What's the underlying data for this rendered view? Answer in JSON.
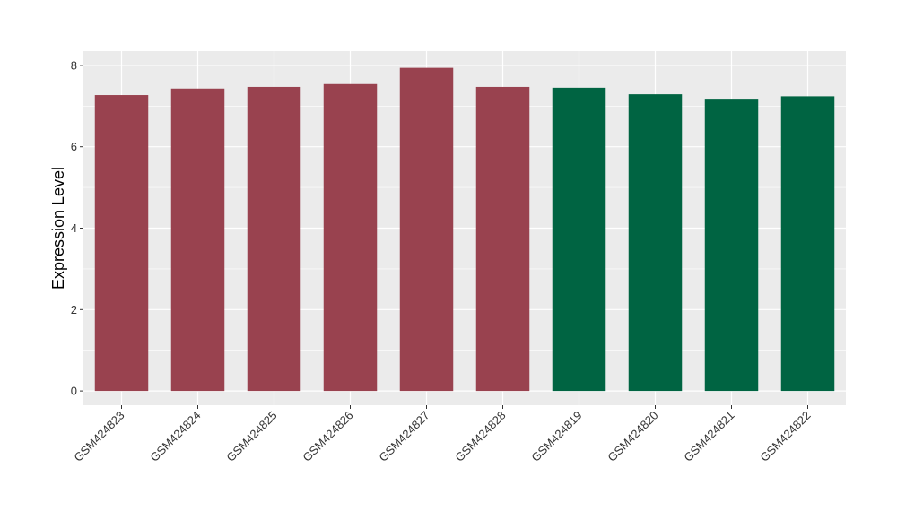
{
  "chart_data": {
    "type": "bar",
    "ylabel": "Expression Level",
    "xlabel": "",
    "ylim": [
      -0.35,
      8.35
    ],
    "yticks": [
      0,
      2,
      4,
      6,
      8
    ],
    "grid": true,
    "categories": [
      "GSM424823",
      "GSM424824",
      "GSM424825",
      "GSM424826",
      "GSM424827",
      "GSM424828",
      "GSM424819",
      "GSM424820",
      "GSM424821",
      "GSM424822"
    ],
    "values": [
      7.27,
      7.43,
      7.47,
      7.54,
      7.94,
      7.47,
      7.45,
      7.29,
      7.18,
      7.24
    ],
    "bar_colors": [
      "#99424f",
      "#99424f",
      "#99424f",
      "#99424f",
      "#99424f",
      "#99424f",
      "#006442",
      "#006442",
      "#006442",
      "#006442"
    ],
    "panel_background": "#ebebeb",
    "grid_color": "#ffffff"
  }
}
